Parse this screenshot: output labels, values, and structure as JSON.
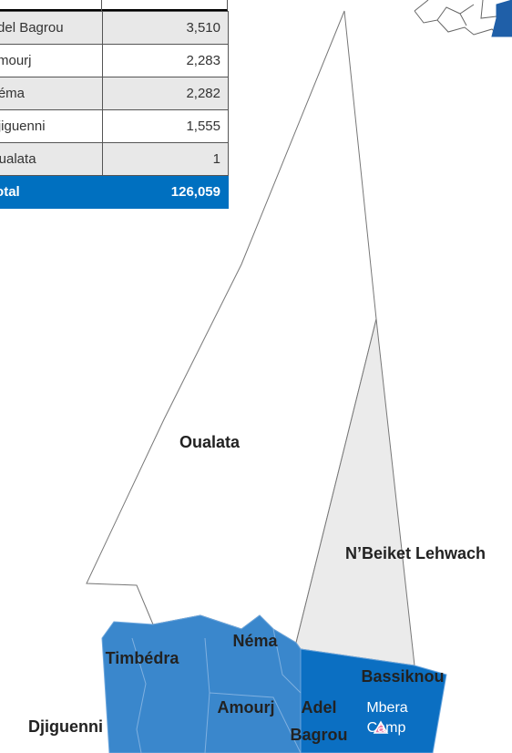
{
  "table": {
    "rows": [
      [
        "Adel Bagrou",
        "3,510"
      ],
      [
        "Amourj",
        "2,283"
      ],
      [
        "Néma",
        "2,282"
      ],
      [
        "Djiguenni",
        "1,555"
      ],
      [
        "Oualata",
        "1"
      ],
      [
        "Total",
        "126,059"
      ]
    ]
  },
  "map_labels": [
    "Oualata",
    "N’Beiket Lehwach",
    "Néma",
    "Timbédra",
    "Bassiknou",
    "Amourj",
    "Adel",
    "Bagrou",
    "Djiguenni",
    "Mbera",
    "Camp"
  ]
}
